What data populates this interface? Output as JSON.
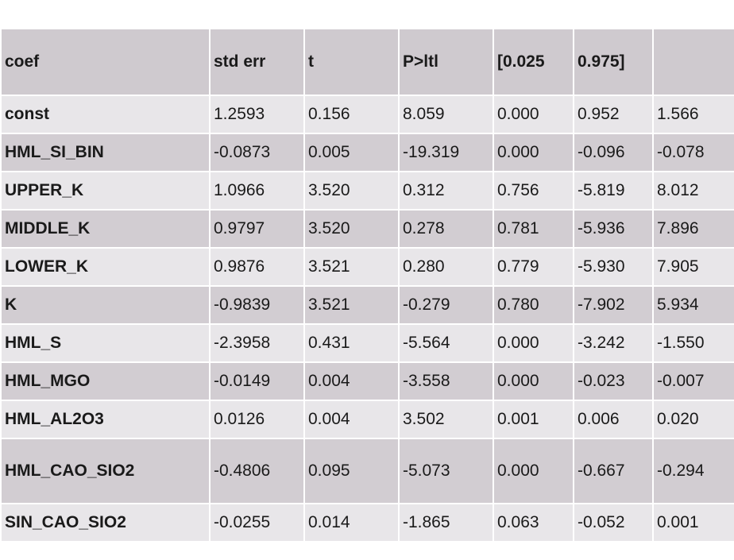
{
  "table": {
    "headers": [
      "coef",
      "std err",
      "t",
      "P>ltl",
      "[0.025",
      "0.975]",
      ""
    ],
    "rows": [
      [
        "const",
        "1.2593",
        "0.156",
        "8.059",
        "0.000",
        "0.952",
        "1.566"
      ],
      [
        "HML_SI_BIN",
        "-0.0873",
        "0.005",
        "-19.319",
        "0.000",
        "-0.096",
        "-0.078"
      ],
      [
        "UPPER_K",
        "1.0966",
        "3.520",
        "0.312",
        "0.756",
        "-5.819",
        "8.012"
      ],
      [
        "MIDDLE_K",
        "0.9797",
        "3.520",
        "0.278",
        "0.781",
        "-5.936",
        "7.896"
      ],
      [
        "LOWER_K",
        "0.9876",
        "3.521",
        "0.280",
        "0.779",
        "-5.930",
        "7.905"
      ],
      [
        "K",
        "-0.9839",
        "3.521",
        "-0.279",
        "0.780",
        "-7.902",
        "5.934"
      ],
      [
        "HML_S",
        "-2.3958",
        "0.431",
        "-5.564",
        "0.000",
        "-3.242",
        "-1.550"
      ],
      [
        "HML_MGO",
        "-0.0149",
        "0.004",
        "-3.558",
        "0.000",
        "-0.023",
        "-0.007"
      ],
      [
        "HML_AL2O3",
        "0.0126",
        "0.004",
        "3.502",
        "0.001",
        "0.006",
        "0.020"
      ],
      [
        "HML_CAO_SIO2",
        "-0.4806",
        "0.095",
        "-5.073",
        "0.000",
        "-0.667",
        "-0.294"
      ],
      [
        "SIN_CAO_SIO2",
        "-0.0255",
        "0.014",
        "-1.865",
        "0.063",
        "-0.052",
        "0.001"
      ]
    ]
  },
  "colors": {
    "header_bg": "#cfcacf",
    "row_light": "#e8e6e9",
    "row_dark": "#d2cdd2",
    "grid_line": "#ffffff"
  }
}
